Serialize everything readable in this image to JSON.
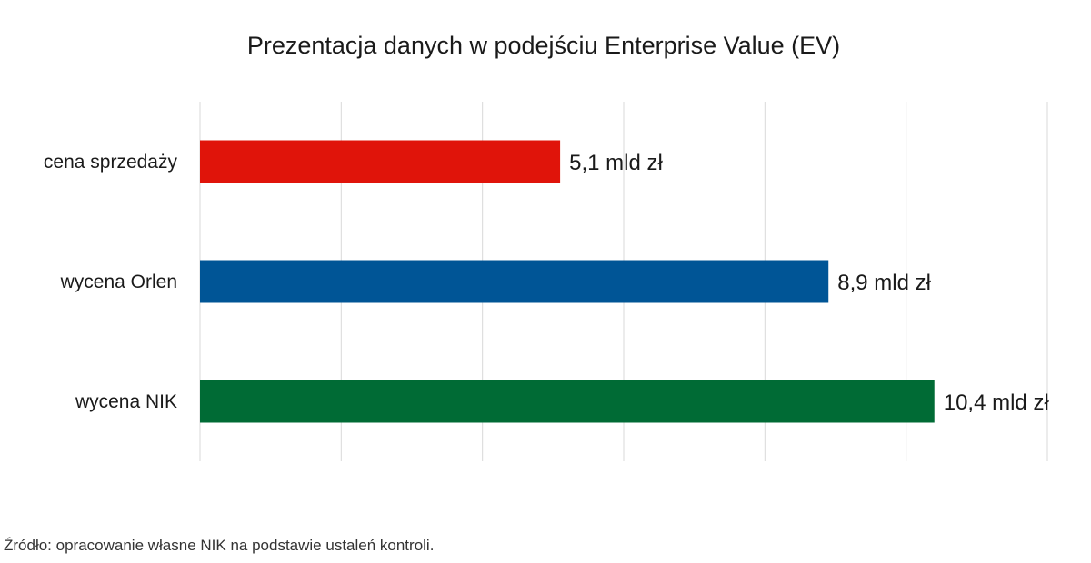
{
  "chart_data": {
    "type": "bar",
    "orientation": "horizontal",
    "title": "Prezentacja danych w podejściu Enterprise Value (EV)",
    "xlabel": "",
    "ylabel": "",
    "categories": [
      "cena sprzedaży",
      "wycena Orlen",
      "wycena NIK"
    ],
    "values": [
      5.1,
      8.9,
      10.4
    ],
    "data_labels": [
      "5,1 mld zł",
      "8,9 mld zł",
      "10,4 mld zł"
    ],
    "colors": [
      "#e0140a",
      "#005596",
      "#006b35"
    ],
    "xlim": [
      0,
      12
    ],
    "x_grid_step": 2,
    "grid": true,
    "legend": "none"
  },
  "source_note": "Źródło: opracowanie własne NIK na podstawie ustaleń kontroli."
}
